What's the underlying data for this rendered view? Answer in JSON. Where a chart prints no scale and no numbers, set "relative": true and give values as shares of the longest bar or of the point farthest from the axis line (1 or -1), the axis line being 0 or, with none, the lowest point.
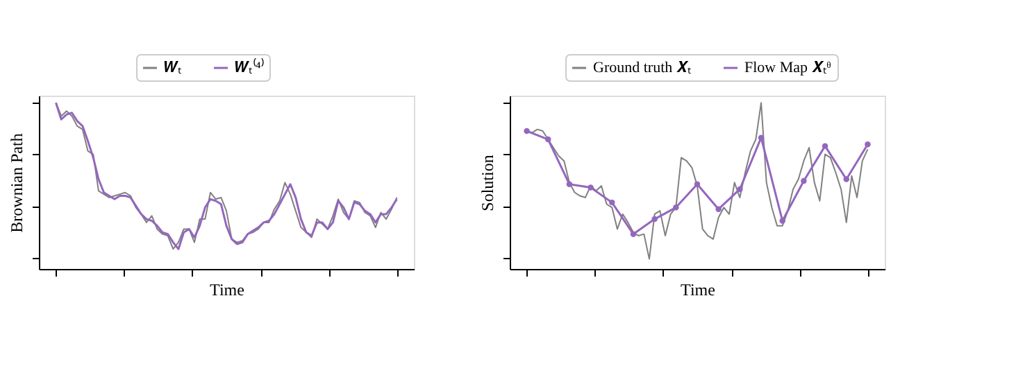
{
  "chart_data": [
    {
      "type": "line",
      "relative": true,
      "xlabel": "Time",
      "ylabel": "Brownian Path",
      "legend": "top",
      "tick_labels": false,
      "grid": false,
      "line_style": "solid",
      "marker": "none",
      "categories": [
        null,
        null,
        null,
        null,
        null,
        null,
        null,
        null,
        null,
        null,
        null,
        null,
        null,
        null,
        null,
        null,
        null,
        null,
        null,
        null,
        null,
        null,
        null,
        null,
        null,
        null,
        null,
        null,
        null,
        null,
        null,
        null,
        null,
        null,
        null,
        null,
        null,
        null,
        null,
        null,
        null,
        null,
        null,
        null,
        null,
        null,
        null,
        null,
        null,
        null,
        null,
        null,
        null,
        null,
        null,
        null,
        null,
        null,
        null,
        null,
        null,
        null,
        null,
        null,
        null
      ],
      "series": [
        {
          "name": "𝑾ₜ",
          "color": "#808080",
          "values": [
            1.0,
            0.92,
            0.95,
            0.92,
            0.86,
            0.84,
            0.71,
            0.69,
            0.47,
            0.45,
            0.43,
            0.44,
            0.45,
            0.46,
            0.44,
            0.37,
            0.33,
            0.28,
            0.32,
            0.24,
            0.21,
            0.2,
            0.12,
            0.16,
            0.24,
            0.24,
            0.16,
            0.3,
            0.3,
            0.46,
            0.42,
            0.43,
            0.35,
            0.18,
            0.16,
            0.17,
            0.21,
            0.22,
            0.24,
            0.28,
            0.28,
            0.36,
            0.41,
            0.52,
            0.45,
            0.35,
            0.25,
            0.22,
            0.19,
            0.3,
            0.27,
            0.24,
            0.32,
            0.42,
            0.34,
            0.3,
            0.41,
            0.4,
            0.34,
            0.32,
            0.25,
            0.34,
            0.3,
            0.36,
            0.43
          ]
        },
        {
          "name": "𝑾ₜ⁽⁴⁾",
          "color": "#9467bd",
          "values": [
            1.0,
            0.9,
            0.93,
            0.94,
            0.89,
            0.86,
            0.77,
            0.67,
            0.54,
            0.46,
            0.44,
            0.42,
            0.44,
            0.44,
            0.43,
            0.38,
            0.33,
            0.3,
            0.29,
            0.26,
            0.22,
            0.21,
            0.16,
            0.12,
            0.22,
            0.24,
            0.19,
            0.26,
            0.37,
            0.42,
            0.41,
            0.39,
            0.26,
            0.18,
            0.15,
            0.16,
            0.21,
            0.23,
            0.25,
            0.28,
            0.29,
            0.33,
            0.39,
            0.45,
            0.51,
            0.43,
            0.3,
            0.22,
            0.2,
            0.28,
            0.28,
            0.24,
            0.28,
            0.41,
            0.37,
            0.3,
            0.4,
            0.39,
            0.35,
            0.33,
            0.28,
            0.33,
            0.33,
            0.37,
            0.42
          ]
        }
      ]
    },
    {
      "type": "line",
      "relative": true,
      "xlabel": "Time",
      "ylabel": "Solution",
      "legend": "top",
      "tick_labels": false,
      "grid": false,
      "line_style": "solid",
      "categories": [
        null,
        null,
        null,
        null,
        null,
        null,
        null,
        null,
        null,
        null,
        null,
        null,
        null,
        null,
        null,
        null,
        null,
        null,
        null,
        null,
        null,
        null,
        null,
        null,
        null,
        null,
        null,
        null,
        null,
        null,
        null,
        null,
        null,
        null,
        null,
        null,
        null,
        null,
        null,
        null,
        null,
        null,
        null,
        null,
        null,
        null,
        null,
        null,
        null,
        null,
        null,
        null,
        null,
        null,
        null,
        null,
        null,
        null,
        null,
        null,
        null,
        null,
        null,
        null,
        null
      ],
      "series": [
        {
          "name": "Ground truth 𝑿ₜ",
          "color": "#808080",
          "marker": "none",
          "values": [
            0.83,
            0.82,
            0.84,
            0.83,
            0.78,
            0.73,
            0.68,
            0.65,
            0.52,
            0.46,
            0.44,
            0.43,
            0.5,
            0.47,
            0.5,
            0.39,
            0.37,
            0.24,
            0.33,
            0.28,
            0.22,
            0.2,
            0.21,
            0.06,
            0.33,
            0.35,
            0.2,
            0.33,
            0.37,
            0.67,
            0.65,
            0.61,
            0.5,
            0.24,
            0.2,
            0.18,
            0.31,
            0.37,
            0.33,
            0.52,
            0.43,
            0.58,
            0.71,
            0.78,
            1.0,
            0.52,
            0.37,
            0.26,
            0.26,
            0.35,
            0.48,
            0.54,
            0.65,
            0.73,
            0.52,
            0.41,
            0.69,
            0.67,
            0.58,
            0.48,
            0.28,
            0.56,
            0.43,
            0.65,
            0.72
          ]
        },
        {
          "name": "Flow Map 𝑿ₜᶿ",
          "color": "#9467bd",
          "marker": "circle",
          "values": [
            0.83,
            null,
            null,
            null,
            0.78,
            null,
            null,
            null,
            0.51,
            null,
            null,
            null,
            0.49,
            null,
            null,
            null,
            0.4,
            null,
            null,
            null,
            0.21,
            null,
            null,
            null,
            0.3,
            null,
            null,
            null,
            0.37,
            null,
            null,
            null,
            0.51,
            null,
            null,
            null,
            0.36,
            null,
            null,
            null,
            0.48,
            null,
            null,
            null,
            0.79,
            null,
            null,
            null,
            0.29,
            null,
            null,
            null,
            0.53,
            null,
            null,
            null,
            0.74,
            null,
            null,
            null,
            0.54,
            null,
            null,
            null,
            0.75
          ]
        }
      ]
    }
  ]
}
